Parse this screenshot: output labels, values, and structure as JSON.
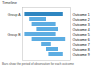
{
  "chart_data": {
    "type": "bar",
    "orientation": "horizontal",
    "title": "Timeline",
    "caption": "Bars show the period of observation for each outcome",
    "categories": [
      "Outcome 1",
      "Outcome 2",
      "Outcome 3",
      "Outcome 4",
      "Outcome 5",
      "Outcome 6",
      "Outcome 7",
      "Outcome 8",
      "Outcome 9"
    ],
    "values": [
      [
        0.5,
        8.5
      ],
      [
        1.5,
        5
      ],
      [
        2,
        7
      ],
      [
        3,
        7.5
      ],
      [
        0.5,
        7
      ],
      [
        2,
        9
      ],
      [
        4,
        6
      ],
      [
        5,
        7.5
      ],
      [
        5.5,
        8.5
      ]
    ],
    "colors": [
      "#2e86c1",
      "#5dade2",
      "#5dade2",
      "#5dade2",
      "#5dade2",
      "#5dade2",
      "#5dade2",
      "#5dade2",
      "#5dade2"
    ],
    "groups": [
      {
        "label": "Group A",
        "row": 0
      },
      {
        "label": "Group B",
        "row": 4
      }
    ],
    "xlim": [
      0,
      10
    ],
    "xticks": [],
    "tick_labels": "y",
    "grid": false
  }
}
